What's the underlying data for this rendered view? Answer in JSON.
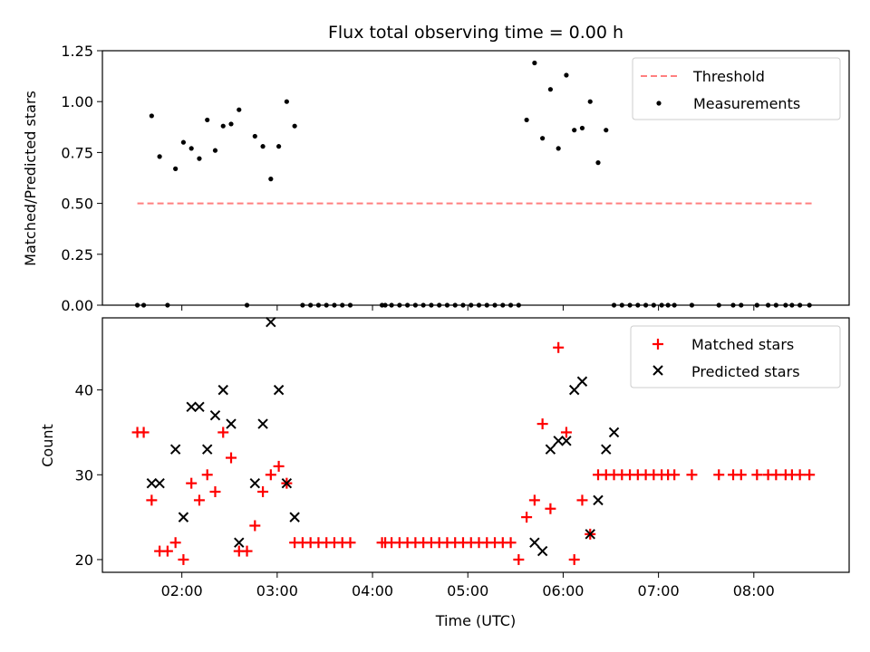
{
  "chart_data": [
    {
      "type": "scatter",
      "title": "Flux total observing time = 0.00 h",
      "xlabel": "",
      "ylabel": "Matched/Predicted stars",
      "ylim": [
        0,
        1.25
      ],
      "yticks": [
        "0.00",
        "0.25",
        "0.50",
        "0.75",
        "1.00",
        "1.25"
      ],
      "legend": {
        "placement": "upper right",
        "entries": [
          "Threshold",
          "Measurements"
        ]
      },
      "threshold": {
        "name": "Threshold",
        "y": 0.5,
        "x_start": "01:32",
        "x_end": "08:37",
        "color": "#ff7f7f",
        "style": "dashed"
      },
      "series": [
        {
          "name": "Measurements",
          "color": "#000000",
          "marker": "dot",
          "x": [
            "01:32",
            "01:36",
            "01:41",
            "01:46",
            "01:51",
            "01:56",
            "02:01",
            "02:06",
            "02:11",
            "02:16",
            "02:21",
            "02:26",
            "02:31",
            "02:36",
            "02:41",
            "02:46",
            "02:51",
            "02:56",
            "03:01",
            "03:06",
            "03:11",
            "03:16",
            "03:21",
            "03:26",
            "03:31",
            "03:36",
            "03:41",
            "03:46",
            "04:06",
            "04:08",
            "04:12",
            "04:17",
            "04:22",
            "04:27",
            "04:32",
            "04:37",
            "04:42",
            "04:47",
            "04:52",
            "04:57",
            "05:02",
            "05:07",
            "05:12",
            "05:17",
            "05:22",
            "05:27",
            "05:32",
            "05:37",
            "05:42",
            "05:47",
            "05:52",
            "05:57",
            "06:02",
            "06:07",
            "06:12",
            "06:17",
            "06:22",
            "06:27",
            "06:32",
            "06:37",
            "06:42",
            "06:47",
            "06:52",
            "06:57",
            "07:02",
            "07:06",
            "07:10",
            "07:21",
            "07:38",
            "07:47",
            "07:52",
            "08:02",
            "08:09",
            "08:14",
            "08:20",
            "08:24",
            "08:29",
            "08:35"
          ],
          "y": [
            0,
            0,
            0.93,
            0.73,
            0,
            0.67,
            0.8,
            0.77,
            0.72,
            0.91,
            0.76,
            0.88,
            0.89,
            0.96,
            0,
            0.83,
            0.78,
            0.62,
            0.78,
            1.0,
            0.88,
            0,
            0,
            0,
            0,
            0,
            0,
            0,
            0,
            0,
            0,
            0,
            0,
            0,
            0,
            0,
            0,
            0,
            0,
            0,
            0,
            0,
            0,
            0,
            0,
            0,
            0,
            0.91,
            1.19,
            0.82,
            1.06,
            0.77,
            1.13,
            0.86,
            0.87,
            1.0,
            0.7,
            0.86,
            0,
            0,
            0,
            0,
            0,
            0,
            0,
            0,
            0,
            0,
            0,
            0,
            0,
            0,
            0,
            0,
            0,
            0,
            0,
            0
          ]
        }
      ]
    },
    {
      "type": "scatter",
      "title": "",
      "xlabel": "Time (UTC)",
      "ylabel": "Count",
      "xlim": [
        "01:10",
        "09:00"
      ],
      "ylim": [
        18.5,
        48.5
      ],
      "xticks": [
        "02:00",
        "03:00",
        "04:00",
        "05:00",
        "06:00",
        "07:00",
        "08:00"
      ],
      "yticks": [
        "20",
        "30",
        "40"
      ],
      "legend": {
        "placement": "upper right",
        "entries": [
          "Matched stars",
          "Predicted stars"
        ]
      },
      "series": [
        {
          "name": "Matched stars",
          "color": "#ff0000",
          "marker": "plus",
          "x": [
            "01:32",
            "01:36",
            "01:41",
            "01:46",
            "01:51",
            "01:56",
            "02:01",
            "02:06",
            "02:11",
            "02:16",
            "02:21",
            "02:26",
            "02:31",
            "02:36",
            "02:41",
            "02:46",
            "02:51",
            "02:56",
            "03:01",
            "03:06",
            "03:11",
            "03:16",
            "03:21",
            "03:26",
            "03:31",
            "03:36",
            "03:41",
            "03:46",
            "04:06",
            "04:08",
            "04:12",
            "04:17",
            "04:22",
            "04:27",
            "04:32",
            "04:37",
            "04:42",
            "04:47",
            "04:52",
            "04:57",
            "05:02",
            "05:07",
            "05:12",
            "05:17",
            "05:22",
            "05:27",
            "05:32",
            "05:37",
            "05:42",
            "05:47",
            "05:52",
            "05:57",
            "06:02",
            "06:07",
            "06:12",
            "06:17",
            "06:22",
            "06:27",
            "06:32",
            "06:37",
            "06:42",
            "06:47",
            "06:52",
            "06:57",
            "07:02",
            "07:06",
            "07:10",
            "07:21",
            "07:38",
            "07:47",
            "07:52",
            "08:02",
            "08:09",
            "08:14",
            "08:20",
            "08:24",
            "08:29",
            "08:35"
          ],
          "y": [
            35,
            35,
            27,
            21,
            21,
            22,
            20,
            29,
            27,
            30,
            28,
            35,
            32,
            21,
            21,
            24,
            28,
            30,
            31,
            29,
            22,
            22,
            22,
            22,
            22,
            22,
            22,
            22,
            22,
            22,
            22,
            22,
            22,
            22,
            22,
            22,
            22,
            22,
            22,
            22,
            22,
            22,
            22,
            22,
            22,
            22,
            20,
            25,
            27,
            36,
            26,
            45,
            35,
            20,
            27,
            23,
            30,
            30,
            30,
            30,
            30,
            30,
            30,
            30,
            30,
            30,
            30,
            30,
            30,
            30,
            30,
            30,
            30,
            30,
            30,
            30,
            30,
            30
          ]
        },
        {
          "name": "Predicted stars",
          "color": "#000000",
          "marker": "x",
          "x": [
            "01:41",
            "01:46",
            "01:56",
            "02:01",
            "02:06",
            "02:11",
            "02:16",
            "02:21",
            "02:26",
            "02:31",
            "02:36",
            "02:46",
            "02:51",
            "02:56",
            "03:01",
            "03:06",
            "03:11",
            "05:42",
            "05:47",
            "05:52",
            "05:57",
            "06:02",
            "06:07",
            "06:12",
            "06:17",
            "06:22",
            "06:27",
            "06:32"
          ],
          "y": [
            29,
            29,
            33,
            25,
            38,
            38,
            33,
            37,
            40,
            36,
            22,
            29,
            36,
            48,
            40,
            29,
            25,
            22,
            21,
            33,
            34,
            34,
            40,
            41,
            23,
            27,
            33,
            35
          ]
        }
      ]
    }
  ]
}
